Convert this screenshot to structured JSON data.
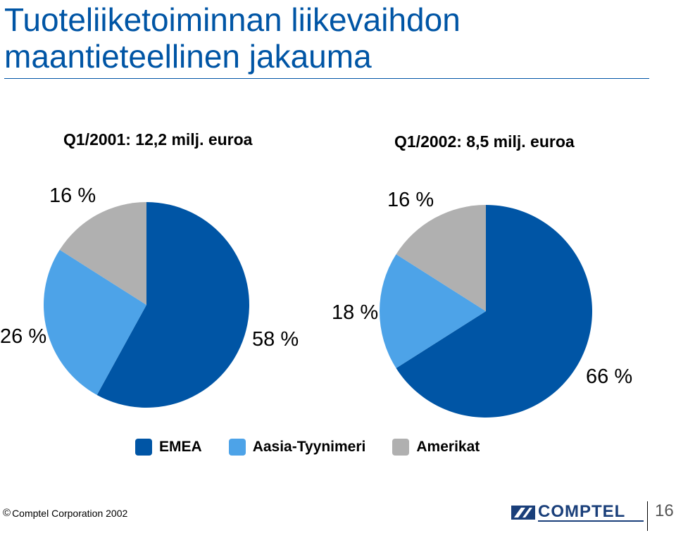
{
  "title": {
    "line1": "Tuoteliiketoiminnan liikevaihdon",
    "line2": "maantieteellinen jakauma"
  },
  "colors": {
    "title": "#0055a5",
    "emea": "#0055a5",
    "asia": "#4da3e8",
    "amerikat": "#b0b0b0"
  },
  "chart_data": [
    {
      "type": "pie",
      "title": "Q1/2001: 12,2 milj. euroa",
      "slices": [
        {
          "label": "EMEA",
          "value": 58,
          "value_label": "58 %"
        },
        {
          "label": "Aasia-Tyynimeri",
          "value": 26,
          "value_label": "26 %"
        },
        {
          "label": "Amerikat",
          "value": 16,
          "value_label": "16 %"
        }
      ],
      "unit": "%"
    },
    {
      "type": "pie",
      "title": "Q1/2002: 8,5 milj. euroa",
      "slices": [
        {
          "label": "EMEA",
          "value": 66,
          "value_label": "66 %"
        },
        {
          "label": "Aasia-Tyynimeri",
          "value": 18,
          "value_label": "18 %"
        },
        {
          "label": "Amerikat",
          "value": 16,
          "value_label": "16 %"
        }
      ],
      "unit": "%"
    }
  ],
  "legend": {
    "items": [
      {
        "label": "EMEA",
        "color_key": "emea"
      },
      {
        "label": "Aasia-Tyynimeri",
        "color_key": "asia"
      },
      {
        "label": "Amerikat",
        "color_key": "amerikat"
      }
    ],
    "placement": "bottom"
  },
  "footer": {
    "copyright_symbol": "©",
    "copyright_text": "Comptel Corporation 2002",
    "logo_text": "COMPTEL",
    "page_number": "16"
  }
}
